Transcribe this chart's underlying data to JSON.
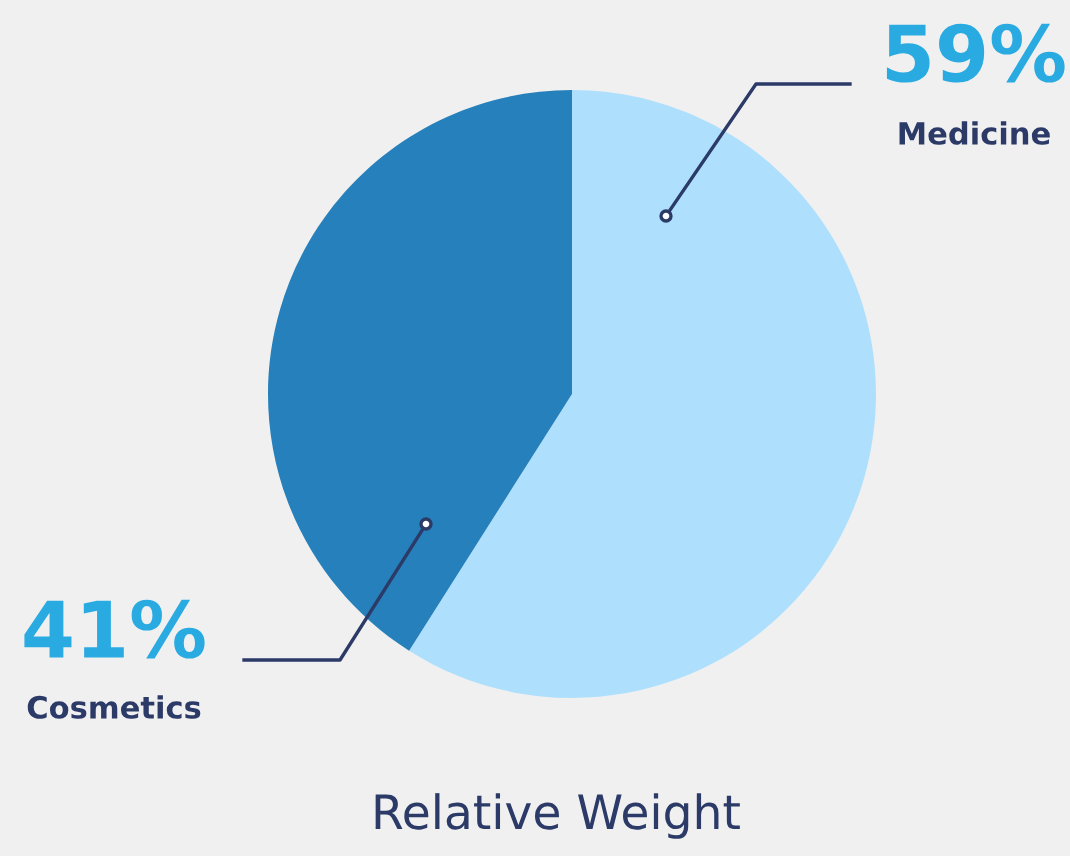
{
  "chart_data": {
    "type": "pie",
    "title": "Relative Weight",
    "categories": [
      "Medicine",
      "Cosmetics"
    ],
    "values": [
      59,
      41
    ],
    "colors": [
      "#aee0fd",
      "#2680bb"
    ],
    "value_labels": [
      "59%",
      "41%"
    ]
  }
}
